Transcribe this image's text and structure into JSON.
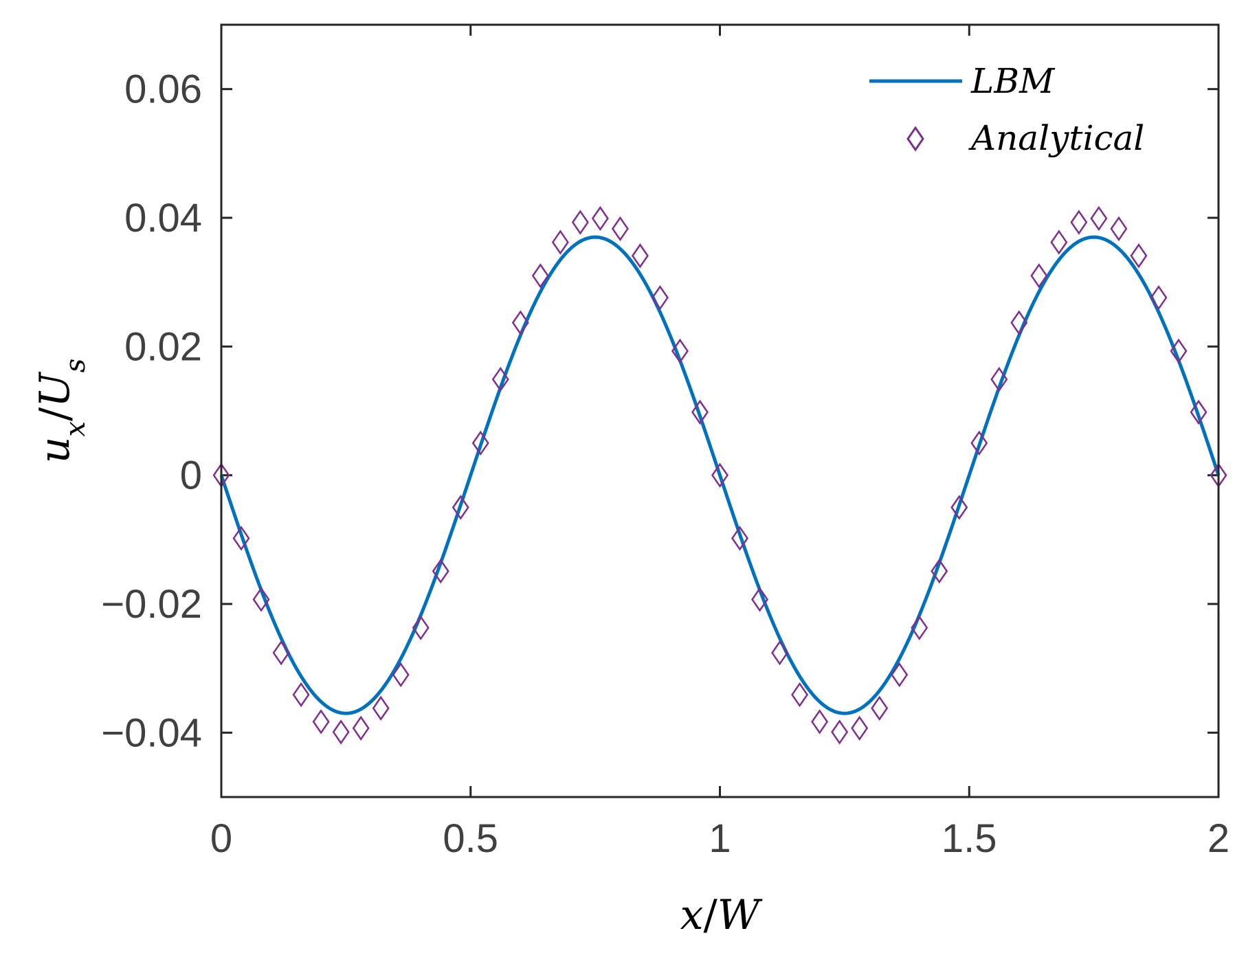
{
  "chart_data": {
    "type": "line",
    "xlabel": "x/W",
    "ylabel": "u_x/U_s",
    "xlabel_parts": {
      "a": "x",
      "slash": "/",
      "b": "W"
    },
    "ylabel_parts": {
      "a": "u",
      "a_sub": "x",
      "slash": "/",
      "b": "U",
      "b_sub": "s"
    },
    "xlim": [
      0,
      2
    ],
    "ylim": [
      -0.05,
      0.07
    ],
    "xticks": [
      {
        "value": 0,
        "label": "0"
      },
      {
        "value": 0.5,
        "label": "0.5"
      },
      {
        "value": 1,
        "label": "1"
      },
      {
        "value": 1.5,
        "label": "1.5"
      },
      {
        "value": 2,
        "label": "2"
      }
    ],
    "yticks": [
      {
        "value": -0.04,
        "label": "−0.04"
      },
      {
        "value": -0.02,
        "label": "−0.02"
      },
      {
        "value": 0,
        "label": "0"
      },
      {
        "value": 0.02,
        "label": "0.02"
      },
      {
        "value": 0.04,
        "label": "0.04"
      },
      {
        "value": 0.06,
        "label": "0.06"
      }
    ],
    "grid": false,
    "legend_position": "top-right",
    "series": [
      {
        "name": "LBM",
        "kind": "line",
        "color": "#0072BD",
        "amplitude": -0.037,
        "period": 1.0,
        "x_range": [
          0,
          2
        ]
      },
      {
        "name": "Analytical",
        "kind": "scatter",
        "marker": "diamond",
        "color": "#7E2F8E",
        "x": [
          0.0,
          0.04,
          0.08,
          0.12,
          0.16,
          0.2,
          0.24,
          0.28,
          0.32,
          0.36,
          0.4,
          0.44,
          0.48,
          0.52,
          0.56,
          0.6,
          0.64,
          0.68,
          0.72,
          0.76,
          0.8,
          0.84,
          0.88,
          0.92,
          0.96,
          1.0,
          1.04,
          1.08,
          1.12,
          1.16,
          1.2,
          1.24,
          1.28,
          1.32,
          1.36,
          1.4,
          1.44,
          1.48,
          1.52,
          1.56,
          1.6,
          1.64,
          1.68,
          1.72,
          1.76,
          1.8,
          1.84,
          1.88,
          1.92,
          1.96,
          2.0
        ],
        "y": [
          0.0,
          -0.0098,
          -0.0193,
          -0.0276,
          -0.0341,
          -0.0383,
          -0.0399,
          -0.0393,
          -0.0362,
          -0.031,
          -0.0237,
          -0.0149,
          -0.005,
          0.005,
          0.0149,
          0.0237,
          0.031,
          0.0362,
          0.0393,
          0.0399,
          0.0383,
          0.0341,
          0.0276,
          0.0193,
          0.0098,
          0.0,
          -0.0098,
          -0.0193,
          -0.0276,
          -0.0341,
          -0.0383,
          -0.0399,
          -0.0393,
          -0.0362,
          -0.031,
          -0.0237,
          -0.0149,
          -0.005,
          0.005,
          0.0149,
          0.0237,
          0.031,
          0.0362,
          0.0393,
          0.0399,
          0.0383,
          0.0341,
          0.0276,
          0.0193,
          0.0098,
          0.0
        ]
      }
    ]
  }
}
